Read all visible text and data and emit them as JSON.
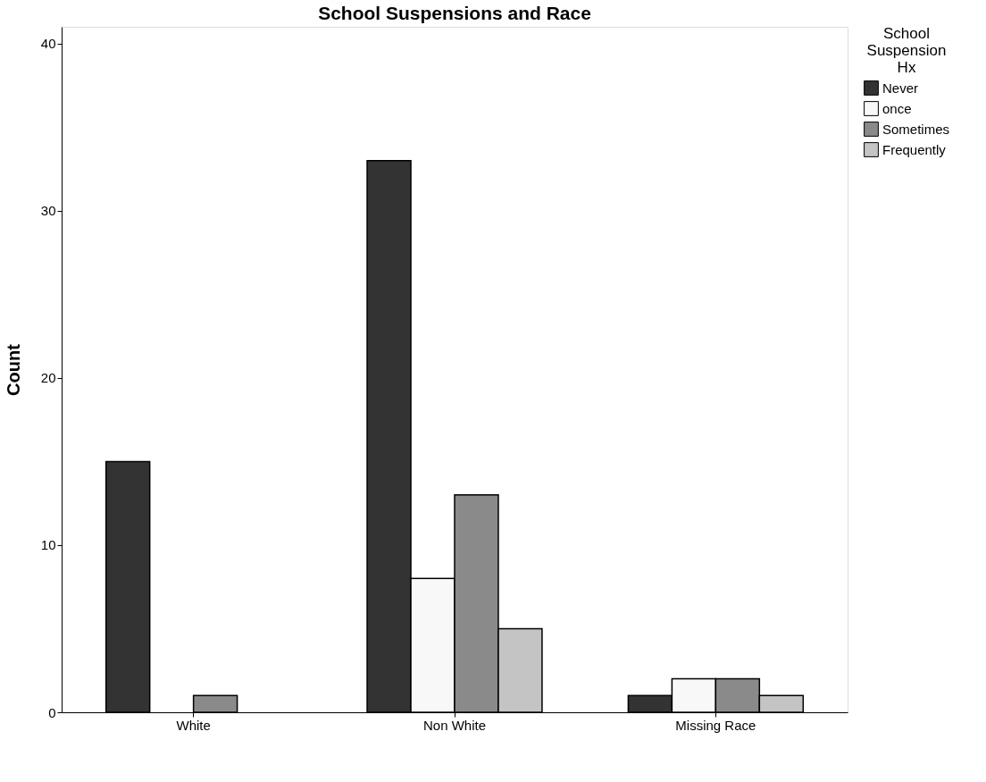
{
  "chart_data": {
    "type": "bar",
    "title": "School Suspensions and Race",
    "ylabel": "Count",
    "legend_title": "School Suspension Hx",
    "categories": [
      "White",
      "Non White",
      "Missing Race"
    ],
    "series": [
      {
        "name": "Never",
        "color": "#333333",
        "values": [
          15,
          33,
          1
        ]
      },
      {
        "name": "once",
        "color": "#f8f8f8",
        "values": [
          null,
          8,
          2
        ]
      },
      {
        "name": "Sometimes",
        "color": "#8a8a8a",
        "values": [
          1,
          13,
          2
        ]
      },
      {
        "name": "Frequently",
        "color": "#c4c4c4",
        "values": [
          null,
          5,
          1
        ]
      }
    ],
    "ylim": [
      0,
      41
    ],
    "yticks": [
      0,
      10,
      20,
      30,
      40
    ],
    "grid": false,
    "legend": "top right"
  }
}
